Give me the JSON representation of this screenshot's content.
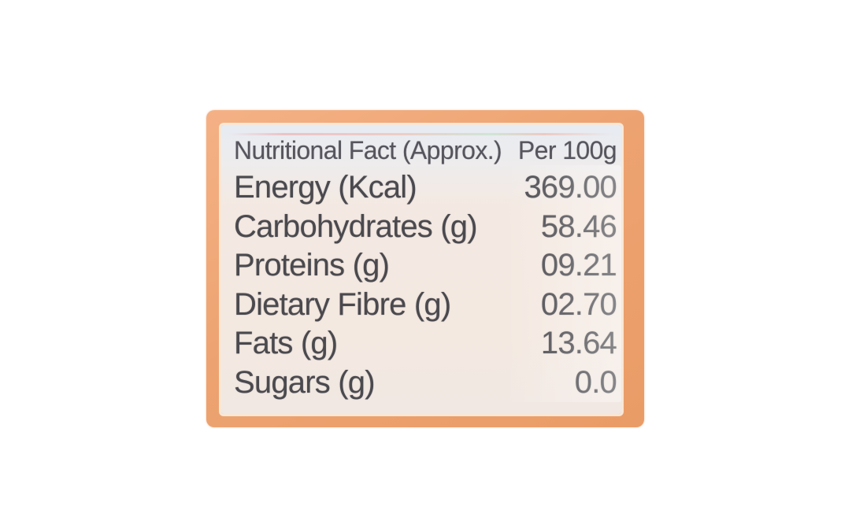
{
  "label": {
    "header": {
      "title": "Nutritional Fact (Approx.)",
      "unit_column": "Per 100g"
    },
    "rows": [
      {
        "name": "Energy (Kcal)",
        "value": "369.00"
      },
      {
        "name": "Carbohydrates (g)",
        "value": "58.46"
      },
      {
        "name": "Proteins (g)",
        "value": "09.21"
      },
      {
        "name": "Dietary Fibre (g)",
        "value": "02.70"
      },
      {
        "name": "Fats (g)",
        "value": "13.64"
      },
      {
        "name": "Sugars (g)",
        "value": "0.0"
      }
    ],
    "colors": {
      "frame_orange": "#eda371",
      "interior_cream": "#f4e9e1",
      "header_tint_blue": "#e7ebf2",
      "text_gray": "#4a494e",
      "page_background": "#ffffff"
    }
  }
}
